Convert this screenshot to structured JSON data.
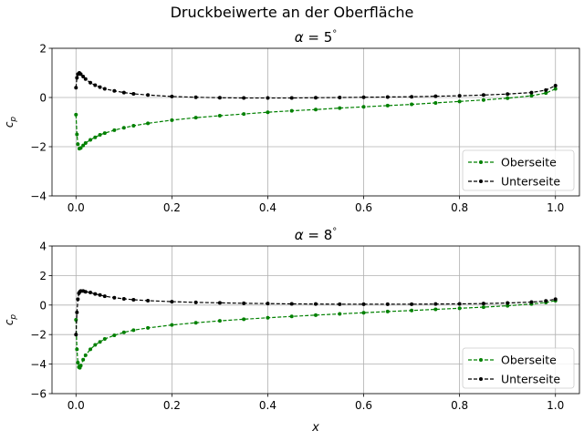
{
  "figure": {
    "suptitle": "Druckbeiwerte an der Oberfläche"
  },
  "colors": {
    "upper": "#008000",
    "lower": "#000000",
    "grid": "#b0b0b0"
  },
  "chart_data": [
    {
      "type": "line",
      "title": "α = 5°",
      "title_alpha": "α",
      "title_value": "5",
      "xlabel": "",
      "ylabel": "c_p",
      "ylabel_main": "c",
      "ylabel_sub": "p",
      "xlim": [
        -0.05,
        1.05
      ],
      "ylim": [
        -4,
        2
      ],
      "xticks": [
        "0.0",
        "0.2",
        "0.4",
        "0.6",
        "0.8",
        "1.0"
      ],
      "yticks": [
        "−4",
        "−2",
        "0",
        "2"
      ],
      "xtick_values": [
        0,
        0.2,
        0.4,
        0.6,
        0.8,
        1.0
      ],
      "ytick_values": [
        -4,
        -2,
        0,
        2
      ],
      "grid": true,
      "legend": "lower-right",
      "series": [
        {
          "name": "Oberseite",
          "color": "#008000",
          "x": [
            0,
            0.002,
            0.004,
            0.007,
            0.01,
            0.015,
            0.02,
            0.03,
            0.04,
            0.05,
            0.06,
            0.08,
            0.1,
            0.12,
            0.15,
            0.2,
            0.25,
            0.3,
            0.35,
            0.4,
            0.45,
            0.5,
            0.55,
            0.6,
            0.65,
            0.7,
            0.75,
            0.8,
            0.85,
            0.9,
            0.95,
            0.98,
            1.0
          ],
          "y": [
            -0.7,
            -1.5,
            -1.9,
            -2.08,
            -2.05,
            -1.95,
            -1.85,
            -1.72,
            -1.62,
            -1.52,
            -1.45,
            -1.33,
            -1.23,
            -1.15,
            -1.05,
            -0.92,
            -0.82,
            -0.74,
            -0.67,
            -0.6,
            -0.54,
            -0.49,
            -0.43,
            -0.38,
            -0.33,
            -0.28,
            -0.22,
            -0.16,
            -0.1,
            -0.03,
            0.07,
            0.18,
            0.35
          ]
        },
        {
          "name": "Unterseite",
          "color": "#000000",
          "x": [
            0,
            0.002,
            0.004,
            0.007,
            0.01,
            0.015,
            0.02,
            0.03,
            0.04,
            0.05,
            0.06,
            0.08,
            0.1,
            0.12,
            0.15,
            0.2,
            0.25,
            0.3,
            0.35,
            0.4,
            0.45,
            0.5,
            0.55,
            0.6,
            0.65,
            0.7,
            0.75,
            0.8,
            0.85,
            0.9,
            0.95,
            0.98,
            1.0
          ],
          "y": [
            0.4,
            0.8,
            0.95,
            1.0,
            0.95,
            0.85,
            0.75,
            0.6,
            0.5,
            0.42,
            0.35,
            0.27,
            0.2,
            0.15,
            0.1,
            0.04,
            0.01,
            -0.01,
            -0.02,
            -0.02,
            -0.02,
            -0.01,
            0.0,
            0.01,
            0.02,
            0.03,
            0.05,
            0.07,
            0.1,
            0.14,
            0.2,
            0.3,
            0.48
          ]
        }
      ]
    },
    {
      "type": "line",
      "title": "α = 8°",
      "title_alpha": "α",
      "title_value": "8",
      "xlabel": "x",
      "ylabel": "c_p",
      "ylabel_main": "c",
      "ylabel_sub": "p",
      "xlim": [
        -0.05,
        1.05
      ],
      "ylim": [
        -6,
        4
      ],
      "xticks": [
        "0.0",
        "0.2",
        "0.4",
        "0.6",
        "0.8",
        "1.0"
      ],
      "yticks": [
        "−6",
        "−4",
        "−2",
        "0",
        "2",
        "4"
      ],
      "xtick_values": [
        0,
        0.2,
        0.4,
        0.6,
        0.8,
        1.0
      ],
      "ytick_values": [
        -6,
        -4,
        -2,
        0,
        2,
        4
      ],
      "grid": true,
      "legend": "lower-right",
      "series": [
        {
          "name": "Oberseite",
          "color": "#008000",
          "x": [
            0,
            0.002,
            0.004,
            0.006,
            0.008,
            0.01,
            0.015,
            0.02,
            0.03,
            0.04,
            0.05,
            0.06,
            0.08,
            0.1,
            0.12,
            0.15,
            0.2,
            0.25,
            0.3,
            0.35,
            0.4,
            0.45,
            0.5,
            0.55,
            0.6,
            0.65,
            0.7,
            0.75,
            0.8,
            0.85,
            0.9,
            0.95,
            0.98,
            1.0
          ],
          "y": [
            -1.0,
            -3.0,
            -3.9,
            -4.2,
            -4.25,
            -4.1,
            -3.7,
            -3.4,
            -3.0,
            -2.7,
            -2.5,
            -2.3,
            -2.05,
            -1.85,
            -1.7,
            -1.55,
            -1.35,
            -1.2,
            -1.07,
            -0.96,
            -0.86,
            -0.77,
            -0.68,
            -0.6,
            -0.52,
            -0.44,
            -0.37,
            -0.29,
            -0.22,
            -0.14,
            -0.05,
            0.07,
            0.17,
            0.3
          ]
        },
        {
          "name": "Unterseite",
          "color": "#000000",
          "x": [
            0,
            0.002,
            0.004,
            0.006,
            0.008,
            0.01,
            0.015,
            0.02,
            0.03,
            0.04,
            0.05,
            0.06,
            0.08,
            0.1,
            0.12,
            0.15,
            0.2,
            0.25,
            0.3,
            0.35,
            0.4,
            0.45,
            0.5,
            0.55,
            0.6,
            0.65,
            0.7,
            0.75,
            0.8,
            0.85,
            0.9,
            0.95,
            0.98,
            1.0
          ],
          "y": [
            -2.0,
            -0.5,
            0.4,
            0.8,
            0.9,
            0.95,
            0.95,
            0.9,
            0.85,
            0.75,
            0.68,
            0.6,
            0.5,
            0.42,
            0.36,
            0.3,
            0.23,
            0.18,
            0.15,
            0.12,
            0.1,
            0.08,
            0.07,
            0.06,
            0.06,
            0.06,
            0.06,
            0.07,
            0.08,
            0.1,
            0.14,
            0.2,
            0.28,
            0.4
          ]
        }
      ]
    }
  ]
}
